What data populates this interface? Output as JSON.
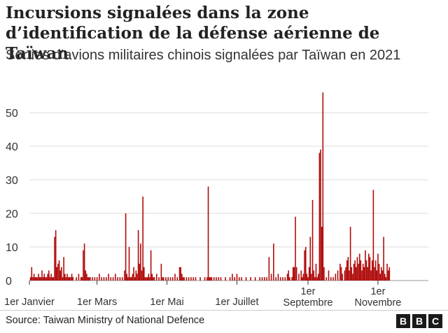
{
  "title": "Incursions signalées dans la zone d’identification de la défense aérienne de Taïwan",
  "subtitle": "Sorties d’avions militaires chinois signalées par Taïwan en 2021",
  "source": "Source: Taiwan Ministry of National Defence",
  "logo": [
    "B",
    "B",
    "C"
  ],
  "chart_data": {
    "type": "bar",
    "ylim": [
      0,
      55
    ],
    "yticks": [
      "0",
      "10",
      "20",
      "30",
      "40",
      "50"
    ],
    "grid": true,
    "bar_color": "#b00c0c",
    "xlim": [
      1,
      349
    ],
    "xticks": [
      {
        "day": 1,
        "label": [
          "1er Janvier"
        ]
      },
      {
        "day": 60,
        "label": [
          "1er Mars"
        ]
      },
      {
        "day": 121,
        "label": [
          "1er Mai"
        ]
      },
      {
        "day": 182,
        "label": [
          "1er Juillet"
        ]
      },
      {
        "day": 244,
        "label": [
          "1er",
          "Septembre"
        ]
      },
      {
        "day": 305,
        "label": [
          "1er",
          "Novembre"
        ]
      }
    ],
    "values": [
      [
        2,
        1
      ],
      [
        3,
        4
      ],
      [
        4,
        1
      ],
      [
        5,
        2
      ],
      [
        6,
        1
      ],
      [
        7,
        1
      ],
      [
        8,
        1
      ],
      [
        9,
        2
      ],
      [
        10,
        1
      ],
      [
        11,
        1
      ],
      [
        12,
        3
      ],
      [
        13,
        1
      ],
      [
        14,
        2
      ],
      [
        15,
        1
      ],
      [
        16,
        1
      ],
      [
        17,
        2
      ],
      [
        18,
        3
      ],
      [
        19,
        1
      ],
      [
        20,
        2
      ],
      [
        21,
        1
      ],
      [
        22,
        1
      ],
      [
        23,
        13
      ],
      [
        24,
        15
      ],
      [
        25,
        4
      ],
      [
        26,
        5
      ],
      [
        27,
        6
      ],
      [
        28,
        3
      ],
      [
        29,
        4
      ],
      [
        30,
        1
      ],
      [
        31,
        7
      ],
      [
        32,
        2
      ],
      [
        33,
        1
      ],
      [
        34,
        2
      ],
      [
        35,
        1
      ],
      [
        36,
        1
      ],
      [
        37,
        1
      ],
      [
        38,
        2
      ],
      [
        39,
        1
      ],
      [
        42,
        1
      ],
      [
        44,
        2
      ],
      [
        46,
        1
      ],
      [
        47,
        1
      ],
      [
        48,
        9
      ],
      [
        49,
        11
      ],
      [
        50,
        3
      ],
      [
        51,
        2
      ],
      [
        52,
        1
      ],
      [
        53,
        1
      ],
      [
        54,
        1
      ],
      [
        56,
        1
      ],
      [
        58,
        1
      ],
      [
        60,
        1
      ],
      [
        62,
        2
      ],
      [
        64,
        1
      ],
      [
        66,
        1
      ],
      [
        68,
        1
      ],
      [
        70,
        2
      ],
      [
        72,
        1
      ],
      [
        74,
        1
      ],
      [
        76,
        2
      ],
      [
        78,
        1
      ],
      [
        80,
        1
      ],
      [
        82,
        1
      ],
      [
        84,
        3
      ],
      [
        85,
        20
      ],
      [
        86,
        2
      ],
      [
        87,
        1
      ],
      [
        88,
        10
      ],
      [
        89,
        1
      ],
      [
        90,
        1
      ],
      [
        91,
        2
      ],
      [
        92,
        4
      ],
      [
        93,
        1
      ],
      [
        94,
        3
      ],
      [
        95,
        2
      ],
      [
        96,
        15
      ],
      [
        97,
        5
      ],
      [
        98,
        11
      ],
      [
        99,
        3
      ],
      [
        100,
        25
      ],
      [
        101,
        4
      ],
      [
        102,
        1
      ],
      [
        103,
        1
      ],
      [
        104,
        1
      ],
      [
        105,
        2
      ],
      [
        106,
        1
      ],
      [
        107,
        9
      ],
      [
        108,
        2
      ],
      [
        109,
        1
      ],
      [
        110,
        1
      ],
      [
        112,
        2
      ],
      [
        114,
        1
      ],
      [
        116,
        5
      ],
      [
        117,
        1
      ],
      [
        118,
        1
      ],
      [
        120,
        1
      ],
      [
        122,
        1
      ],
      [
        124,
        1
      ],
      [
        126,
        1
      ],
      [
        128,
        2
      ],
      [
        130,
        1
      ],
      [
        132,
        4
      ],
      [
        133,
        4
      ],
      [
        134,
        2
      ],
      [
        135,
        1
      ],
      [
        136,
        1
      ],
      [
        138,
        1
      ],
      [
        140,
        1
      ],
      [
        142,
        1
      ],
      [
        144,
        1
      ],
      [
        146,
        1
      ],
      [
        150,
        1
      ],
      [
        154,
        1
      ],
      [
        156,
        1
      ],
      [
        157,
        28
      ],
      [
        158,
        1
      ],
      [
        159,
        1
      ],
      [
        160,
        1
      ],
      [
        162,
        1
      ],
      [
        164,
        1
      ],
      [
        166,
        1
      ],
      [
        168,
        1
      ],
      [
        172,
        1
      ],
      [
        176,
        1
      ],
      [
        178,
        2
      ],
      [
        180,
        1
      ],
      [
        182,
        2
      ],
      [
        184,
        1
      ],
      [
        186,
        1
      ],
      [
        190,
        1
      ],
      [
        194,
        1
      ],
      [
        198,
        1
      ],
      [
        202,
        1
      ],
      [
        204,
        1
      ],
      [
        206,
        1
      ],
      [
        208,
        1
      ],
      [
        210,
        7
      ],
      [
        212,
        2
      ],
      [
        214,
        11
      ],
      [
        216,
        1
      ],
      [
        218,
        2
      ],
      [
        220,
        1
      ],
      [
        222,
        1
      ],
      [
        224,
        1
      ],
      [
        226,
        2
      ],
      [
        227,
        3
      ],
      [
        228,
        1
      ],
      [
        230,
        1
      ],
      [
        231,
        4
      ],
      [
        232,
        4
      ],
      [
        233,
        19
      ],
      [
        234,
        4
      ],
      [
        236,
        2
      ],
      [
        238,
        3
      ],
      [
        239,
        1
      ],
      [
        240,
        2
      ],
      [
        241,
        9
      ],
      [
        242,
        10
      ],
      [
        243,
        2
      ],
      [
        244,
        1
      ],
      [
        245,
        4
      ],
      [
        246,
        13
      ],
      [
        247,
        2
      ],
      [
        248,
        24
      ],
      [
        249,
        3
      ],
      [
        250,
        1
      ],
      [
        251,
        5
      ],
      [
        252,
        1
      ],
      [
        253,
        2
      ],
      [
        254,
        38
      ],
      [
        255,
        39
      ],
      [
        256,
        16
      ],
      [
        257,
        56
      ],
      [
        258,
        4
      ],
      [
        260,
        1
      ],
      [
        262,
        3
      ],
      [
        264,
        1
      ],
      [
        266,
        1
      ],
      [
        268,
        2
      ],
      [
        270,
        3
      ],
      [
        272,
        5
      ],
      [
        273,
        4
      ],
      [
        274,
        2
      ],
      [
        276,
        3
      ],
      [
        277,
        4
      ],
      [
        278,
        6
      ],
      [
        279,
        7
      ],
      [
        280,
        3
      ],
      [
        281,
        16
      ],
      [
        282,
        4
      ],
      [
        283,
        2
      ],
      [
        284,
        5
      ],
      [
        285,
        6
      ],
      [
        286,
        4
      ],
      [
        287,
        7
      ],
      [
        288,
        5
      ],
      [
        289,
        8
      ],
      [
        290,
        6
      ],
      [
        291,
        3
      ],
      [
        292,
        5
      ],
      [
        293,
        4
      ],
      [
        294,
        9
      ],
      [
        295,
        6
      ],
      [
        296,
        4
      ],
      [
        297,
        8
      ],
      [
        298,
        7
      ],
      [
        299,
        3
      ],
      [
        300,
        6
      ],
      [
        301,
        27
      ],
      [
        302,
        4
      ],
      [
        303,
        6
      ],
      [
        304,
        3
      ],
      [
        305,
        8
      ],
      [
        306,
        5
      ],
      [
        307,
        2
      ],
      [
        308,
        4
      ],
      [
        309,
        3
      ],
      [
        310,
        13
      ],
      [
        311,
        2
      ],
      [
        312,
        1
      ],
      [
        313,
        5
      ],
      [
        314,
        3
      ],
      [
        315,
        4
      ]
    ]
  }
}
